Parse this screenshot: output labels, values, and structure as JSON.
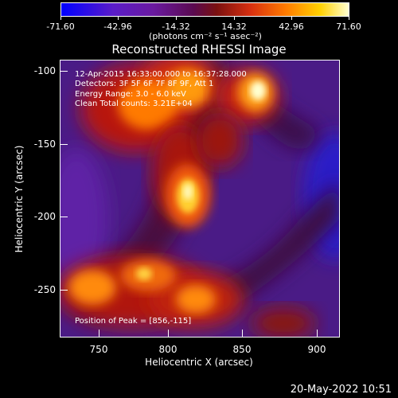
{
  "colorbar": {
    "tick_labels": [
      "-71.60",
      "-42.96",
      "-14.32",
      "14.32",
      "42.96",
      "71.60"
    ],
    "title": "(photons cm⁻² s⁻¹ asec⁻²)"
  },
  "plot": {
    "title": "Reconstructed RHESSI Image",
    "xlabel": "Heliocentric X (arcsec)",
    "ylabel": "Heliocentric Y (arcsec)",
    "x_ticks": [
      "750",
      "800",
      "850",
      "900"
    ],
    "y_ticks": [
      "-100",
      "-150",
      "-200",
      "-250"
    ],
    "annotations": {
      "time": "12-Apr-2015 16:33:00.000 to 16:37:28.000",
      "detectors": "Detectors: 3F 5F 6F 7F 8F 9F, Att 1",
      "energy": "Energy Range: 3.0 - 6.0 keV",
      "method": "Clean     Total counts: 3.21E+04",
      "peak": "Position of Peak = [856,-115]"
    }
  },
  "footer": {
    "timestamp": "20-May-2022 10:51"
  }
}
